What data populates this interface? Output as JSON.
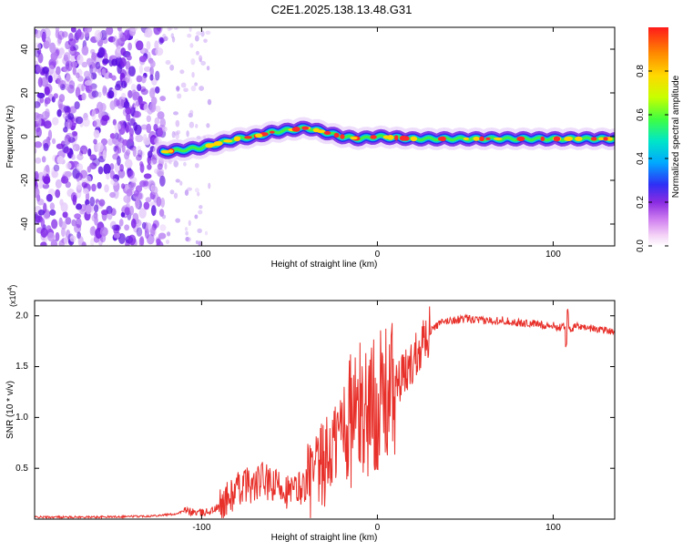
{
  "title": "C2E1.2025.138.13.48.G31",
  "chart_data": [
    {
      "type": "heatmap",
      "xlabel": "Height of straight line (km)",
      "ylabel": "Frequency (Hz)",
      "xlim": [
        -195,
        135
      ],
      "ylim": [
        -50,
        50
      ],
      "xticks": [
        -100,
        0,
        100
      ],
      "xtick_labels": [
        "-100",
        "0",
        "100"
      ],
      "yticks": [
        -40,
        -20,
        0,
        20,
        40
      ],
      "ytick_labels": [
        "-40",
        "-20",
        "0",
        "20",
        "40"
      ],
      "colorbar": {
        "label": "Normalized spectral amplitude",
        "range": [
          0,
          1
        ],
        "ticks": [
          0.0,
          0.2,
          0.4,
          0.6,
          0.8
        ],
        "tick_labels": [
          "0.0",
          "0.2",
          "0.4",
          "0.6",
          "0.8"
        ]
      },
      "ridge": {
        "x": [
          -122,
          -110,
          -100,
          -90,
          -80,
          -70,
          -60,
          -50,
          -40,
          -30,
          -20,
          -10,
          0,
          20,
          40,
          60,
          80,
          100,
          135
        ],
        "frequency": [
          -7,
          -6,
          -5,
          -3,
          -1,
          0,
          2,
          3,
          4,
          2,
          0,
          -1,
          0,
          -1,
          -1,
          -1,
          -1,
          -1,
          -1
        ]
      },
      "noise_region": {
        "x": [
          -195,
          -122
        ],
        "frequency": [
          -50,
          50
        ]
      },
      "grid": false
    },
    {
      "type": "line",
      "xlabel": "Height of straight line (km)",
      "ylabel": "SNR (10 * v/v)",
      "yscale_label": "(x10",
      "yscale_exponent": "4",
      "xlim": [
        -195,
        135
      ],
      "ylim": [
        0,
        2.15
      ],
      "xticks": [
        -100,
        0,
        100
      ],
      "xtick_labels": [
        "-100",
        "0",
        "100"
      ],
      "yticks": [
        0.5,
        1.0,
        1.5,
        2.0
      ],
      "ytick_labels": [
        "0.5",
        "1.0",
        "1.5",
        "2.0"
      ],
      "color": "#e8302a",
      "series": [
        {
          "x": [
            -195,
            -160,
            -130,
            -115,
            -110,
            -100,
            -95,
            -90,
            -85,
            -80,
            -75,
            -70,
            -65,
            -60,
            -55,
            -50,
            -45,
            -40,
            -35,
            -30,
            -25,
            -20,
            -15,
            -10,
            -5,
            0,
            5,
            10,
            15,
            20,
            25,
            30,
            35,
            40,
            45,
            50,
            60,
            70,
            80,
            90,
            100,
            105,
            108,
            110,
            115,
            120,
            125,
            130,
            135
          ],
          "y": [
            0.02,
            0.02,
            0.03,
            0.05,
            0.08,
            0.06,
            0.08,
            0.12,
            0.2,
            0.28,
            0.35,
            0.32,
            0.4,
            0.3,
            0.35,
            0.25,
            0.3,
            0.35,
            0.4,
            0.55,
            0.7,
            0.95,
            1.0,
            1.05,
            1.1,
            1.15,
            1.2,
            1.3,
            1.4,
            1.55,
            1.75,
            1.85,
            1.92,
            1.95,
            1.96,
            1.97,
            1.95,
            1.96,
            1.93,
            1.92,
            1.9,
            1.88,
            1.95,
            1.87,
            1.9,
            1.88,
            1.87,
            1.86,
            1.85
          ]
        }
      ],
      "grid": false
    }
  ]
}
